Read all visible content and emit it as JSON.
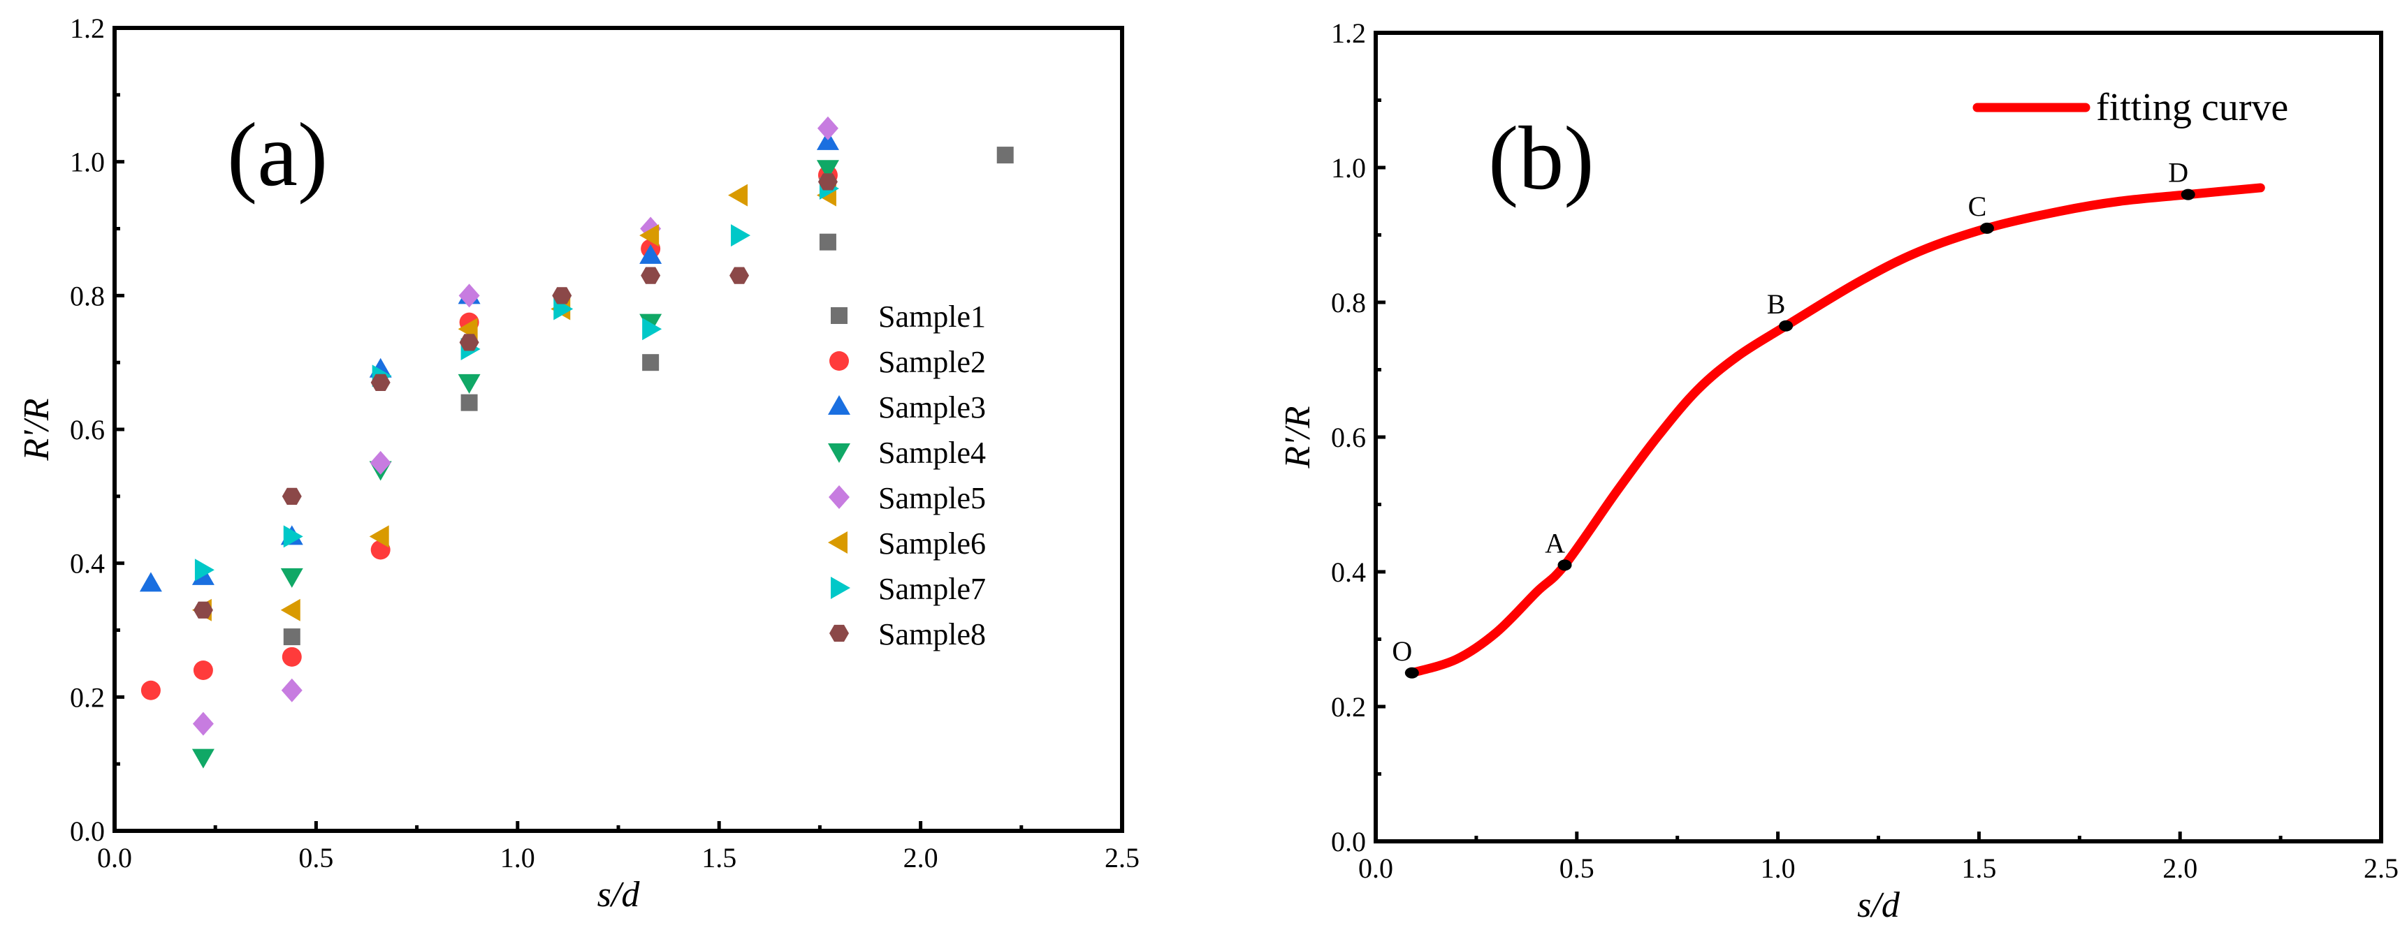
{
  "chart_data": [
    {
      "type": "scatter",
      "panel_label": "(a)",
      "xlabel": "s/d",
      "ylabel": "R'/R",
      "xlim": [
        0,
        2.5
      ],
      "ylim": [
        0,
        1.2
      ],
      "xticks": [
        "0.0",
        "0.5",
        "1.0",
        "1.5",
        "2.0",
        "2.5"
      ],
      "yticks": [
        "0.0",
        "0.2",
        "0.4",
        "0.6",
        "0.8",
        "1.0",
        "1.2"
      ],
      "legend_position": "center-right",
      "series": [
        {
          "name": "Sample1",
          "marker": "square",
          "color": "#707070",
          "points": [
            [
              0.44,
              0.29
            ],
            [
              0.88,
              0.64
            ],
            [
              1.33,
              0.7
            ],
            [
              1.77,
              0.88
            ],
            [
              2.21,
              1.01
            ]
          ]
        },
        {
          "name": "Sample2",
          "marker": "circle",
          "color": "#ff3b3b",
          "points": [
            [
              0.09,
              0.21
            ],
            [
              0.22,
              0.24
            ],
            [
              0.44,
              0.26
            ],
            [
              0.66,
              0.42
            ],
            [
              0.88,
              0.76
            ],
            [
              1.33,
              0.87
            ],
            [
              1.77,
              0.98
            ]
          ]
        },
        {
          "name": "Sample3",
          "marker": "triangle-up",
          "color": "#1a6fe0",
          "points": [
            [
              0.09,
              0.37
            ],
            [
              0.22,
              0.38
            ],
            [
              0.44,
              0.44
            ],
            [
              0.66,
              0.69
            ],
            [
              0.88,
              0.8
            ],
            [
              1.33,
              0.86
            ],
            [
              1.77,
              1.03
            ]
          ]
        },
        {
          "name": "Sample4",
          "marker": "triangle-down",
          "color": "#10a866",
          "points": [
            [
              0.22,
              0.11
            ],
            [
              0.44,
              0.38
            ],
            [
              0.66,
              0.54
            ],
            [
              0.88,
              0.67
            ],
            [
              1.33,
              0.76
            ],
            [
              1.77,
              0.99
            ]
          ]
        },
        {
          "name": "Sample5",
          "marker": "diamond",
          "color": "#c77ce0",
          "points": [
            [
              0.22,
              0.16
            ],
            [
              0.44,
              0.21
            ],
            [
              0.66,
              0.55
            ],
            [
              0.88,
              0.8
            ],
            [
              1.33,
              0.9
            ],
            [
              1.77,
              1.05
            ]
          ]
        },
        {
          "name": "Sample6",
          "marker": "triangle-left",
          "color": "#d99a00",
          "points": [
            [
              0.22,
              0.33
            ],
            [
              0.44,
              0.33
            ],
            [
              0.66,
              0.44
            ],
            [
              0.88,
              0.75
            ],
            [
              1.11,
              0.78
            ],
            [
              1.33,
              0.89
            ],
            [
              1.55,
              0.95
            ],
            [
              1.77,
              0.95
            ]
          ]
        },
        {
          "name": "Sample7",
          "marker": "triangle-right",
          "color": "#00c8c8",
          "points": [
            [
              0.22,
              0.39
            ],
            [
              0.44,
              0.44
            ],
            [
              0.66,
              0.68
            ],
            [
              0.88,
              0.72
            ],
            [
              1.11,
              0.78
            ],
            [
              1.33,
              0.75
            ],
            [
              1.55,
              0.89
            ],
            [
              1.77,
              0.96
            ]
          ]
        },
        {
          "name": "Sample8",
          "marker": "hexagon",
          "color": "#8b4848",
          "points": [
            [
              0.22,
              0.33
            ],
            [
              0.44,
              0.5
            ],
            [
              0.66,
              0.67
            ],
            [
              0.88,
              0.73
            ],
            [
              1.11,
              0.8
            ],
            [
              1.33,
              0.83
            ],
            [
              1.55,
              0.83
            ],
            [
              1.77,
              0.97
            ]
          ]
        }
      ]
    },
    {
      "type": "line",
      "panel_label": "(b)",
      "xlabel": "s/d",
      "ylabel": "R'/R",
      "xlim": [
        0,
        2.5
      ],
      "ylim": [
        0,
        1.2
      ],
      "xticks": [
        "0.0",
        "0.5",
        "1.0",
        "1.5",
        "2.0",
        "2.5"
      ],
      "yticks": [
        "0.0",
        "0.2",
        "0.4",
        "0.6",
        "0.8",
        "1.0",
        "1.2"
      ],
      "legend_position": "top-right",
      "series": [
        {
          "name": "fitting curve",
          "color": "#ff0000",
          "x": [
            0.09,
            0.2,
            0.3,
            0.4,
            0.47,
            0.6,
            0.7,
            0.8,
            0.9,
            1.02,
            1.2,
            1.35,
            1.52,
            1.7,
            1.85,
            2.02,
            2.2
          ],
          "y": [
            0.25,
            0.27,
            0.31,
            0.37,
            0.41,
            0.52,
            0.6,
            0.67,
            0.72,
            0.765,
            0.83,
            0.875,
            0.91,
            0.935,
            0.95,
            0.96,
            0.97
          ]
        }
      ],
      "annotations": [
        {
          "label": "O",
          "x": 0.09,
          "y": 0.25
        },
        {
          "label": "A",
          "x": 0.47,
          "y": 0.41
        },
        {
          "label": "B",
          "x": 1.02,
          "y": 0.765
        },
        {
          "label": "C",
          "x": 1.52,
          "y": 0.91
        },
        {
          "label": "D",
          "x": 2.02,
          "y": 0.96
        }
      ]
    }
  ]
}
